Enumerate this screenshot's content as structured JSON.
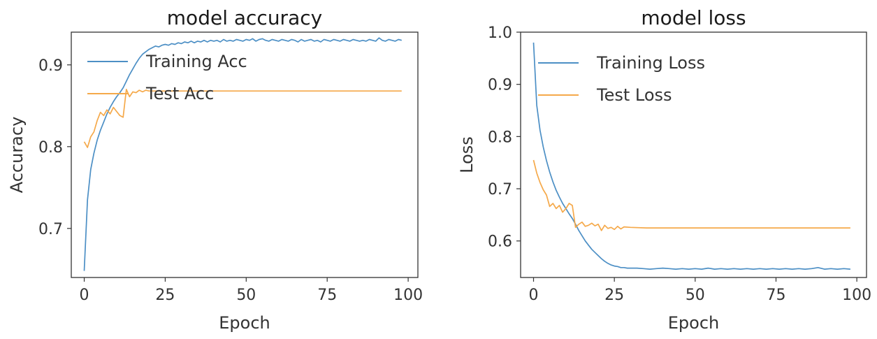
{
  "chart_data": [
    {
      "type": "line",
      "title": "model accuracy",
      "xlabel": "Epoch",
      "ylabel": "Accuracy",
      "xlim": [
        -4,
        103
      ],
      "ylim": [
        0.64,
        0.94
      ],
      "xticks": [
        0,
        25,
        50,
        75,
        100
      ],
      "yticks": [
        0.7,
        0.8,
        0.9
      ],
      "ytick_labels": [
        "0.7",
        "0.8",
        "0.9"
      ],
      "legend": "top-left",
      "series": [
        {
          "name": "Training Acc",
          "color": "#4c8fc5",
          "x": [
            0,
            1,
            2,
            3,
            4,
            5,
            6,
            7,
            8,
            9,
            10,
            11,
            12,
            13,
            14,
            15,
            16,
            17,
            18,
            19,
            20,
            21,
            22,
            23,
            24,
            25,
            26,
            27,
            28,
            29,
            30,
            31,
            32,
            33,
            34,
            35,
            36,
            37,
            38,
            39,
            40,
            41,
            42,
            43,
            44,
            45,
            46,
            47,
            48,
            49,
            50,
            51,
            52,
            53,
            54,
            55,
            56,
            57,
            58,
            59,
            60,
            61,
            62,
            63,
            64,
            65,
            66,
            67,
            68,
            69,
            70,
            71,
            72,
            73,
            74,
            75,
            76,
            77,
            78,
            79,
            80,
            81,
            82,
            83,
            84,
            85,
            86,
            87,
            88,
            89,
            90,
            91,
            92,
            93,
            94,
            95,
            96,
            97,
            98
          ],
          "y": [
            0.648,
            0.735,
            0.772,
            0.792,
            0.808,
            0.82,
            0.83,
            0.84,
            0.848,
            0.855,
            0.861,
            0.866,
            0.872,
            0.88,
            0.888,
            0.895,
            0.902,
            0.908,
            0.913,
            0.916,
            0.919,
            0.921,
            0.923,
            0.922,
            0.924,
            0.925,
            0.924,
            0.926,
            0.925,
            0.927,
            0.926,
            0.928,
            0.927,
            0.929,
            0.927,
            0.929,
            0.928,
            0.93,
            0.928,
            0.93,
            0.929,
            0.93,
            0.928,
            0.931,
            0.929,
            0.93,
            0.929,
            0.931,
            0.93,
            0.929,
            0.931,
            0.93,
            0.932,
            0.929,
            0.931,
            0.932,
            0.93,
            0.929,
            0.931,
            0.93,
            0.929,
            0.931,
            0.93,
            0.929,
            0.931,
            0.93,
            0.928,
            0.931,
            0.929,
            0.93,
            0.931,
            0.929,
            0.93,
            0.928,
            0.931,
            0.93,
            0.929,
            0.931,
            0.93,
            0.929,
            0.931,
            0.93,
            0.929,
            0.931,
            0.93,
            0.929,
            0.93,
            0.929,
            0.931,
            0.93,
            0.929,
            0.933,
            0.93,
            0.929,
            0.931,
            0.93,
            0.929,
            0.931,
            0.93
          ]
        },
        {
          "name": "Test Acc",
          "color": "#f5a94a",
          "x": [
            0,
            1,
            2,
            3,
            4,
            5,
            6,
            7,
            8,
            9,
            10,
            11,
            12,
            13,
            14,
            15,
            16,
            17,
            18,
            19,
            20,
            25,
            30,
            40,
            50,
            60,
            70,
            80,
            90,
            98
          ],
          "y": [
            0.806,
            0.799,
            0.812,
            0.818,
            0.832,
            0.842,
            0.838,
            0.845,
            0.84,
            0.848,
            0.843,
            0.838,
            0.836,
            0.87,
            0.861,
            0.867,
            0.866,
            0.869,
            0.867,
            0.869,
            0.868,
            0.868,
            0.868,
            0.868,
            0.868,
            0.868,
            0.868,
            0.868,
            0.868,
            0.868
          ]
        }
      ]
    },
    {
      "type": "line",
      "title": "model loss",
      "xlabel": "Epoch",
      "ylabel": "Loss",
      "xlim": [
        -4,
        103
      ],
      "ylim": [
        0.53,
        1.0
      ],
      "xticks": [
        0,
        25,
        50,
        75,
        100
      ],
      "yticks": [
        0.6,
        0.7,
        0.8,
        0.9,
        1.0
      ],
      "ytick_labels": [
        "0.6",
        "0.7",
        "0.8",
        "0.9",
        "1.0"
      ],
      "legend": "top-right",
      "series": [
        {
          "name": "Training Loss",
          "color": "#4c8fc5",
          "x": [
            0,
            1,
            2,
            3,
            4,
            5,
            6,
            7,
            8,
            9,
            10,
            11,
            12,
            13,
            14,
            15,
            16,
            17,
            18,
            19,
            20,
            21,
            22,
            23,
            24,
            25,
            26,
            27,
            28,
            29,
            30,
            32,
            34,
            36,
            38,
            40,
            42,
            44,
            46,
            48,
            50,
            52,
            54,
            56,
            58,
            60,
            62,
            64,
            66,
            68,
            70,
            72,
            74,
            76,
            78,
            80,
            82,
            84,
            86,
            88,
            90,
            92,
            94,
            96,
            98
          ],
          "y": [
            0.98,
            0.86,
            0.812,
            0.78,
            0.754,
            0.732,
            0.713,
            0.697,
            0.684,
            0.672,
            0.662,
            0.652,
            0.643,
            0.632,
            0.62,
            0.61,
            0.6,
            0.592,
            0.584,
            0.578,
            0.572,
            0.566,
            0.561,
            0.557,
            0.554,
            0.552,
            0.551,
            0.549,
            0.549,
            0.548,
            0.548,
            0.548,
            0.547,
            0.546,
            0.547,
            0.548,
            0.547,
            0.546,
            0.547,
            0.546,
            0.547,
            0.546,
            0.548,
            0.546,
            0.547,
            0.546,
            0.547,
            0.546,
            0.547,
            0.546,
            0.547,
            0.546,
            0.547,
            0.546,
            0.547,
            0.546,
            0.547,
            0.546,
            0.547,
            0.549,
            0.546,
            0.547,
            0.546,
            0.547,
            0.546
          ]
        },
        {
          "name": "Test Loss",
          "color": "#f5a94a",
          "x": [
            0,
            1,
            2,
            3,
            4,
            5,
            6,
            7,
            8,
            9,
            10,
            11,
            12,
            13,
            14,
            15,
            16,
            17,
            18,
            19,
            20,
            21,
            22,
            23,
            24,
            25,
            26,
            27,
            28,
            30,
            35,
            40,
            50,
            60,
            70,
            80,
            90,
            98
          ],
          "y": [
            0.755,
            0.73,
            0.712,
            0.698,
            0.688,
            0.666,
            0.672,
            0.662,
            0.668,
            0.655,
            0.662,
            0.672,
            0.668,
            0.626,
            0.632,
            0.636,
            0.628,
            0.63,
            0.634,
            0.629,
            0.632,
            0.62,
            0.63,
            0.624,
            0.626,
            0.622,
            0.628,
            0.623,
            0.627,
            0.626,
            0.625,
            0.625,
            0.625,
            0.625,
            0.625,
            0.625,
            0.625,
            0.625
          ]
        }
      ]
    }
  ]
}
